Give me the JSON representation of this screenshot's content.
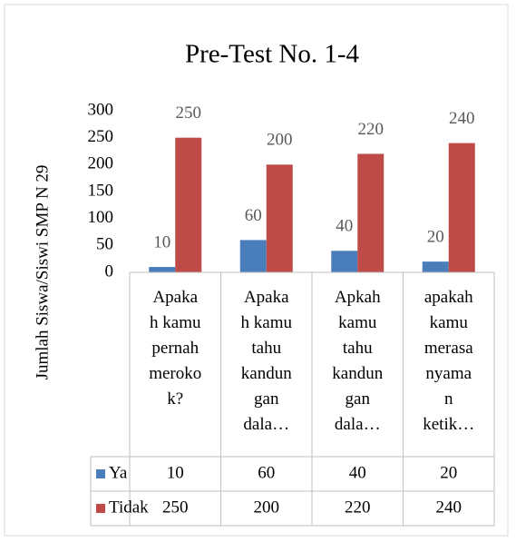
{
  "chart_data": {
    "type": "bar",
    "title": "Pre-Test No. 1-4",
    "ylabel": "Jumlah Siswa/Siswi SMP N 29",
    "categories": [
      "Apaka\nh kamu\npernah\nmeroko\nk?",
      "Apaka\nh kamu\ntahu\nkandun\ngan\ndala…",
      "Apkah\nkamu\ntahu\nkandun\ngan\ndala…",
      "apakah\nkamu\nmerasa\nnyama\nn\nketik…"
    ],
    "series": [
      {
        "name": "Ya",
        "color": "#4a7ebb",
        "values": [
          10,
          60,
          40,
          20
        ]
      },
      {
        "name": "Tidak",
        "color": "#be4b48",
        "values": [
          250,
          200,
          220,
          240
        ]
      }
    ],
    "ylim": [
      0,
      300
    ],
    "yticks": [
      0,
      50,
      100,
      150,
      200,
      250,
      300
    ],
    "grid": false,
    "data_table": true
  }
}
